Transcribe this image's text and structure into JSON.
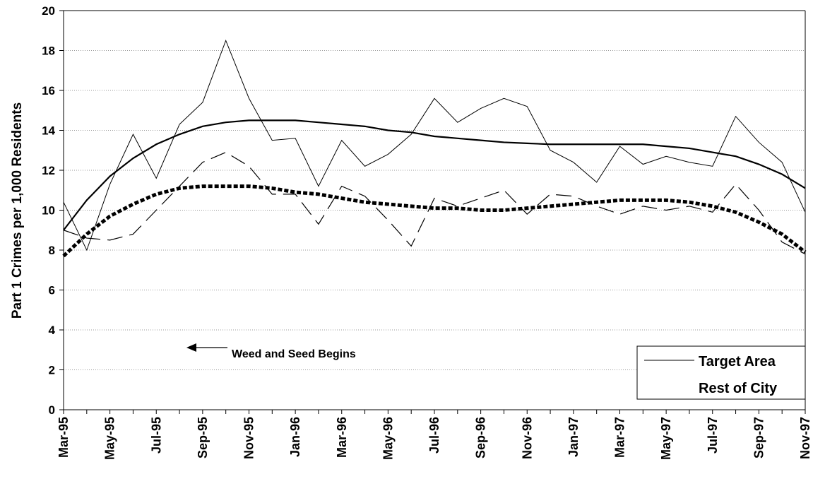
{
  "chart_data": {
    "type": "line",
    "y_label": "Part 1 Crimes per 1,000 Residents",
    "annotation": "Weed and Seed Begins",
    "categories": [
      "Mar-95",
      null,
      "May-95",
      null,
      "Jul-95",
      null,
      "Sep-95",
      null,
      "Nov-95",
      null,
      "Jan-96",
      null,
      "Mar-96",
      null,
      "May-96",
      null,
      "Jul-96",
      null,
      "Sep-96",
      null,
      "Nov-96",
      null,
      "Jan-97",
      null,
      "Mar-97",
      null,
      "May-97",
      null,
      "Jul-97",
      null,
      "Sep-97",
      null,
      "Nov-97"
    ],
    "series": [
      {
        "name": "Target Area",
        "color": "#000000",
        "values": [
          10.4,
          8.0,
          11.3,
          13.8,
          11.6,
          14.3,
          15.4,
          18.5,
          15.6,
          13.5,
          13.6,
          11.2,
          13.5,
          12.2,
          12.8,
          13.8,
          15.6,
          14.4,
          15.1,
          15.6,
          15.2,
          13.0,
          12.4,
          11.4,
          13.2,
          12.3,
          12.7,
          12.4,
          12.2,
          14.7,
          13.4,
          12.4,
          9.9
        ],
        "trend": [
          9.0,
          10.5,
          11.7,
          12.6,
          13.3,
          13.8,
          14.2,
          14.4,
          14.5,
          14.5,
          14.5,
          14.4,
          14.3,
          14.2,
          14.0,
          13.9,
          13.7,
          13.6,
          13.5,
          13.4,
          13.35,
          13.3,
          13.3,
          13.3,
          13.3,
          13.3,
          13.2,
          13.1,
          12.9,
          12.7,
          12.3,
          11.8,
          11.1
        ]
      },
      {
        "name": "Rest of City",
        "color": "#000000",
        "values": [
          9.0,
          8.6,
          8.5,
          8.8,
          10.0,
          11.2,
          12.4,
          12.9,
          12.2,
          10.8,
          10.8,
          9.3,
          11.2,
          10.7,
          9.5,
          8.2,
          10.6,
          10.2,
          10.6,
          11.0,
          9.8,
          10.8,
          10.7,
          10.2,
          9.8,
          10.2,
          10.0,
          10.2,
          9.9,
          11.3,
          10.0,
          8.4,
          7.8
        ],
        "trend": [
          7.7,
          8.8,
          9.7,
          10.3,
          10.8,
          11.1,
          11.2,
          11.2,
          11.2,
          11.1,
          10.9,
          10.8,
          10.6,
          10.4,
          10.3,
          10.2,
          10.1,
          10.1,
          10.0,
          10.0,
          10.1,
          10.2,
          10.3,
          10.4,
          10.5,
          10.5,
          10.5,
          10.4,
          10.2,
          9.9,
          9.4,
          8.8,
          7.9
        ]
      }
    ],
    "ylim": [
      0,
      20
    ],
    "yticks": [
      0,
      2,
      4,
      6,
      8,
      10,
      12,
      14,
      16,
      18,
      20
    ],
    "grid": true,
    "legend": "bottom-right"
  }
}
